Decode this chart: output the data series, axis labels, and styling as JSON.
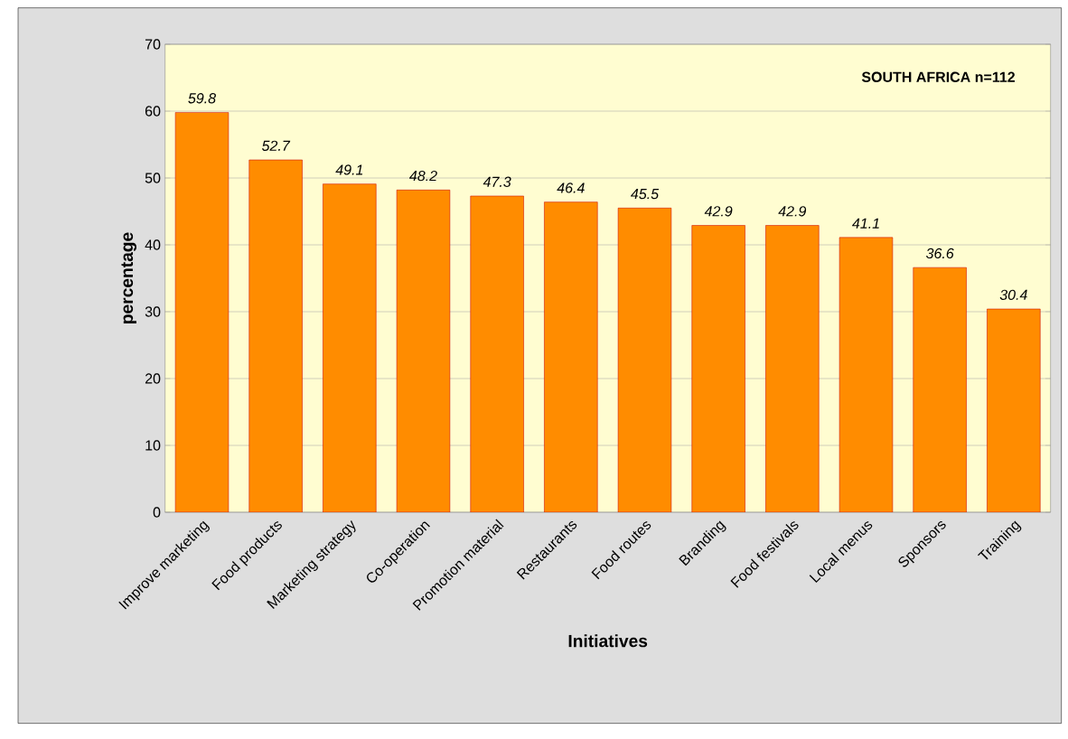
{
  "chart_data": {
    "type": "bar",
    "xlabel": "Initiatives",
    "ylabel": "percentage",
    "categories": [
      "Improve marketing",
      "Food products",
      "Marketing strategy",
      "Co-operation",
      "Promotion material",
      "Restaurants",
      "Food routes",
      "Branding",
      "Food festivals",
      "Local menus",
      "Sponsors",
      "Training"
    ],
    "values": [
      59.8,
      52.7,
      49.1,
      48.2,
      47.3,
      46.4,
      45.5,
      42.9,
      42.9,
      41.1,
      36.6,
      30.4
    ],
    "color": "#ff8c00",
    "data_labels": true,
    "grid": "y",
    "ylim": [
      0,
      70
    ],
    "yticks": [
      0,
      10,
      20,
      30,
      40,
      50,
      60,
      70
    ],
    "annotations": [
      "SOUTH AFRICA   n=112"
    ]
  }
}
